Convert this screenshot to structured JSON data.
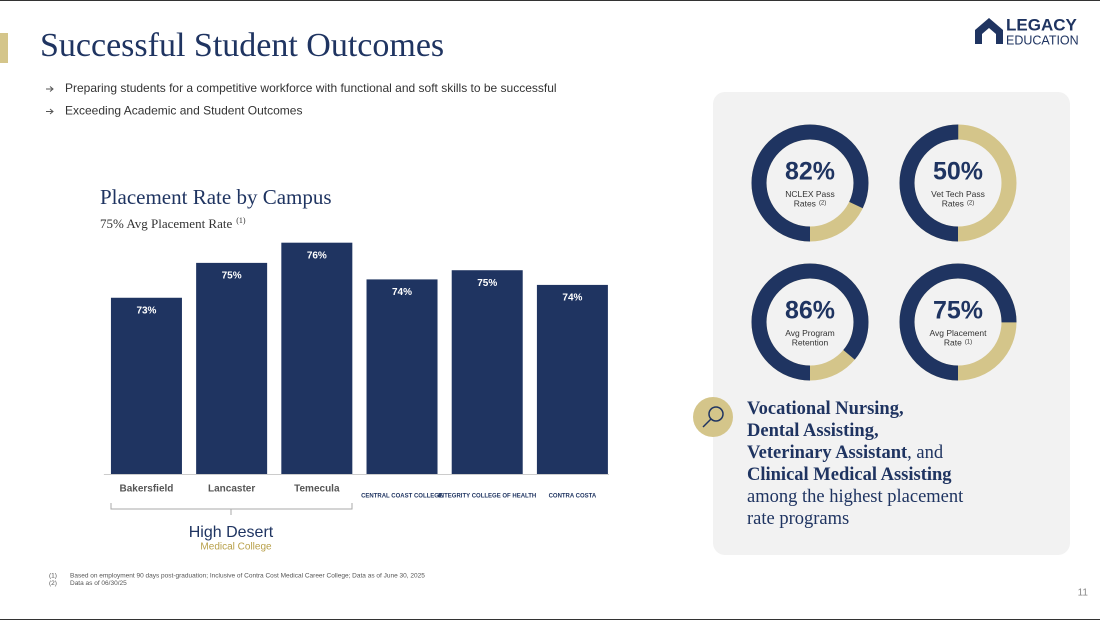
{
  "header": {
    "title": "Successful Student Outcomes",
    "bullets": [
      "Preparing students for a competitive workforce with functional and soft skills to be successful",
      "Exceeding Academic and Student Outcomes"
    ],
    "logo": {
      "line1": "LEGACY",
      "line2": "EDUCATION"
    }
  },
  "chart_data": [
    {
      "type": "bar",
      "title": "Placement Rate by Campus",
      "subtitle": "75% Avg Placement Rate",
      "subtitle_note": "(1)",
      "categories": [
        "Bakersfield",
        "Lancaster",
        "Temecula",
        "CENTRAL COAST COLLEGE",
        "INTEGRITY COLLEGE OF HEALTH",
        "CONTRA COSTA"
      ],
      "values": [
        73.2,
        75.1,
        76.2,
        74.2,
        74.7,
        73.9
      ],
      "value_labels": [
        "73%",
        "75%",
        "76%",
        "74%",
        "75%",
        "74%"
      ],
      "color": "#1f3461",
      "ylim": [
        63.6,
        77
      ],
      "group_logo": [
        "High Desert",
        "Medical College"
      ]
    },
    {
      "type": "donut",
      "values": [
        82
      ],
      "value_labels": [
        "82%"
      ],
      "label_lines": [
        "NCLEX Pass",
        "Rates"
      ],
      "note": "(2)",
      "color": "#1f3461",
      "track_color": "#d4c58a"
    },
    {
      "type": "donut",
      "values": [
        50
      ],
      "value_labels": [
        "50%"
      ],
      "label_lines": [
        "Vet Tech Pass",
        "Rates"
      ],
      "note": "(2)",
      "color": "#1f3461",
      "track_color": "#d4c58a"
    },
    {
      "type": "donut",
      "values": [
        86
      ],
      "value_labels": [
        "86%"
      ],
      "label_lines": [
        "Avg Program",
        "Retention"
      ],
      "color": "#1f3461",
      "track_color": "#d4c58a"
    },
    {
      "type": "donut",
      "values": [
        75
      ],
      "value_labels": [
        "75%"
      ],
      "label_lines": [
        "Avg Placement",
        "Rate"
      ],
      "note": "(1)",
      "color": "#1f3461",
      "track_color": "#d4c58a"
    }
  ],
  "callout": {
    "lines": [
      [
        {
          "text": "Vocational Nursing,",
          "bold": true
        }
      ],
      [
        {
          "text": "Dental Assisting,",
          "bold": true
        }
      ],
      [
        {
          "text": "Veterinary Assistant",
          "bold": true
        },
        {
          "text": ", and",
          "bold": false
        }
      ],
      [
        {
          "text": "Clinical Medical Assisting",
          "bold": true
        }
      ],
      [
        {
          "text": "among the highest placement",
          "bold": false
        }
      ],
      [
        {
          "text": "rate programs",
          "bold": false
        }
      ]
    ]
  },
  "footnotes": [
    [
      "(1)",
      "Based on employment 90 days post-graduation; Inclusive of Contra Cost Medical Career College; Data as of June 30, 2025"
    ],
    [
      "(2)",
      "Data as of 06/30/25"
    ]
  ],
  "page_number": "11"
}
